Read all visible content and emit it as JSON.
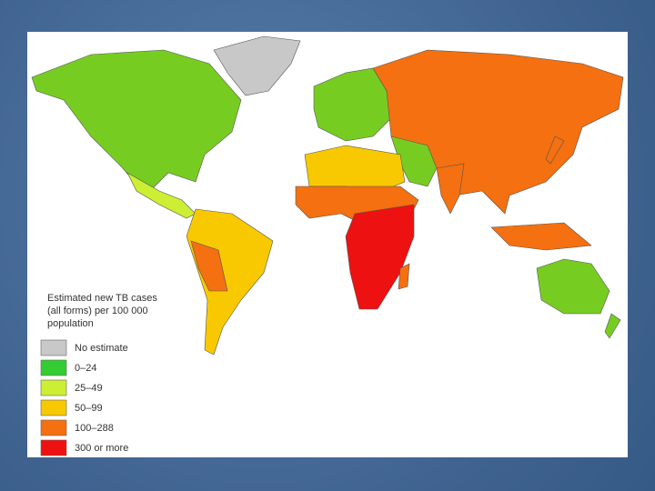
{
  "legend": {
    "title": [
      "Estimated new TB cases",
      "(all forms) per 100 000",
      "population"
    ],
    "items": [
      {
        "label": "No estimate",
        "color": "#c8c8c8"
      },
      {
        "label": "0–24",
        "color": "#33cc33"
      },
      {
        "label": "25–49",
        "color": "#ccee33"
      },
      {
        "label": "50–99",
        "color": "#f8c800"
      },
      {
        "label": "100–288",
        "color": "#f47010"
      },
      {
        "label": "300 or more",
        "color": "#ee1111"
      }
    ]
  }
}
